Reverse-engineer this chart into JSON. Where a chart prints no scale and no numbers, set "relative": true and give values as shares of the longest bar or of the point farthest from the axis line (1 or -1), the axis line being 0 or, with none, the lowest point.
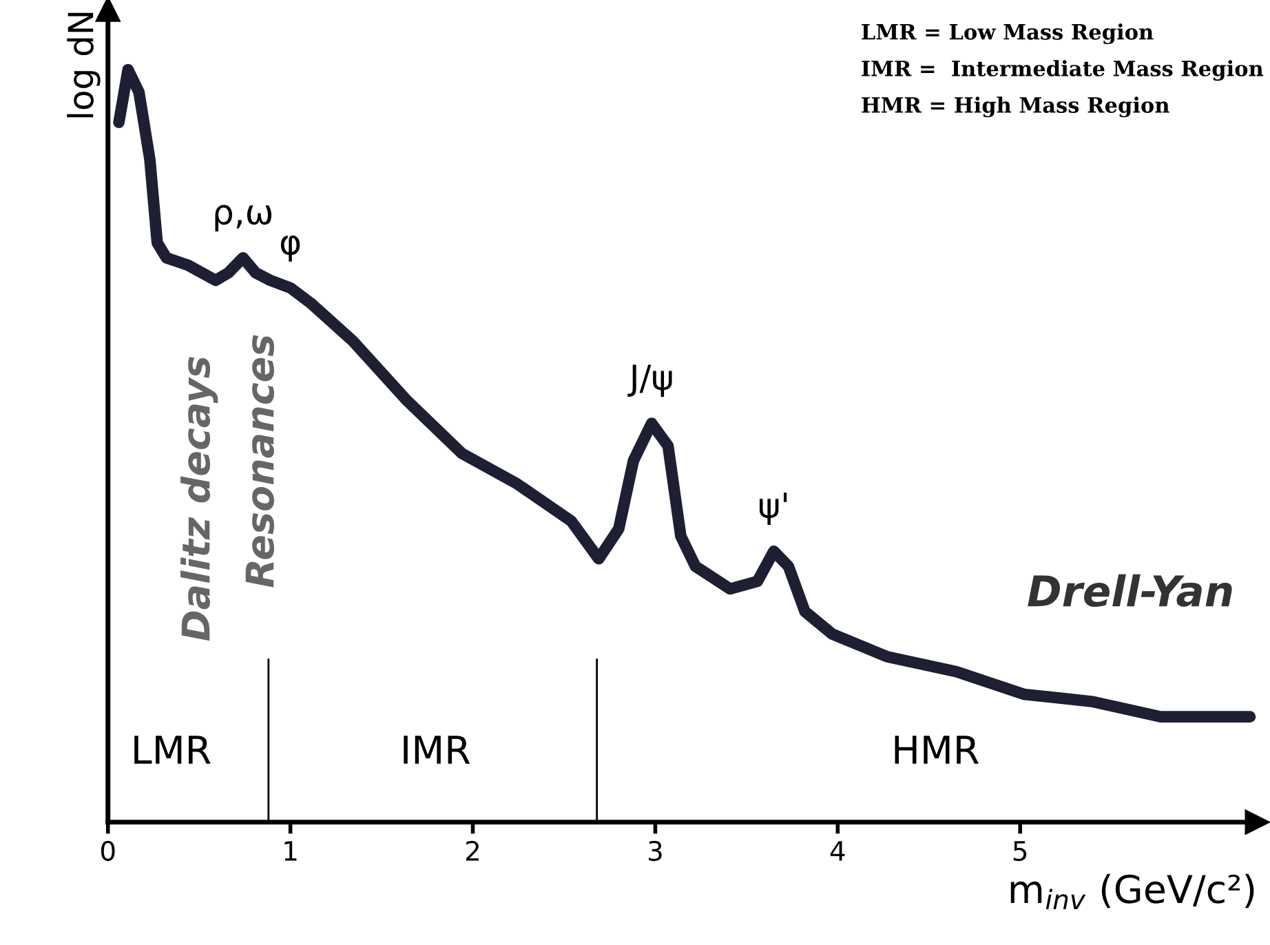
{
  "chart_data": {
    "type": "line",
    "relative": true,
    "xlabel": "m$_{inv}$ (GeV/c²)",
    "ylabel": "log dN",
    "xlim": [
      0,
      6.3
    ],
    "xticks": [
      0,
      1,
      2,
      3,
      4,
      5
    ],
    "tick_labels": "x",
    "grid": false,
    "marker": "none",
    "line_style": "solid",
    "x": [
      0.06,
      0.11,
      0.17,
      0.23,
      0.27,
      0.32,
      0.44,
      0.59,
      0.66,
      0.74,
      0.81,
      0.89,
      1.0,
      1.11,
      1.34,
      1.64,
      1.94,
      2.24,
      2.54,
      2.69,
      2.8,
      2.88,
      2.98,
      3.07,
      3.14,
      3.22,
      3.41,
      3.56,
      3.65,
      3.73,
      3.82,
      3.97,
      4.27,
      4.65,
      5.02,
      5.4,
      5.77,
      6.26
    ],
    "series": [
      {
        "color": "#1f1f33",
        "values": [
          0.93,
          1.0,
          0.97,
          0.88,
          0.77,
          0.75,
          0.74,
          0.72,
          0.73,
          0.75,
          0.73,
          0.72,
          0.71,
          0.69,
          0.64,
          0.56,
          0.49,
          0.45,
          0.4,
          0.35,
          0.39,
          0.48,
          0.53,
          0.5,
          0.38,
          0.34,
          0.31,
          0.32,
          0.36,
          0.34,
          0.28,
          0.25,
          0.22,
          0.2,
          0.17,
          0.16,
          0.14,
          0.14
        ]
      }
    ],
    "ref_lines": [
      {
        "axis": "x",
        "value": 0.88
      },
      {
        "axis": "x",
        "value": 2.68
      }
    ],
    "annotations": [
      {
        "text": "ρ,ω",
        "x": 0.74,
        "y": 0.75
      },
      {
        "text": "φ",
        "x": 1.0,
        "y": 0.71
      },
      {
        "text": "J/ψ",
        "x": 2.98,
        "y": 0.53
      },
      {
        "text": "ψ'",
        "x": 3.65,
        "y": 0.36
      },
      "LMR",
      "IMR",
      "HMR",
      "Drell-Yan",
      "Dalitz decays",
      "Resonances",
      "LMR = Low Mass Region",
      "IMR =  Intermediate Mass Region",
      "HMR = High Mass Region"
    ]
  }
}
